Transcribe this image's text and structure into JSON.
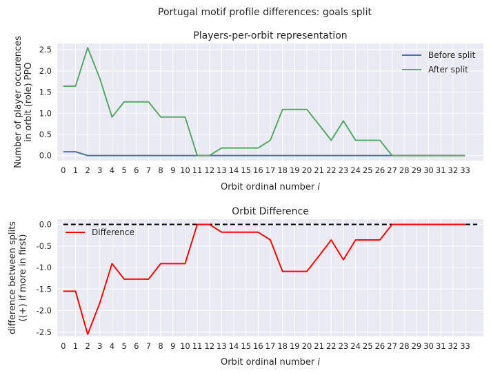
{
  "suptitle": "Portugal motif profile differences: goals split",
  "chart_data": [
    {
      "type": "line",
      "title": "Players-per-orbit representation",
      "xlabel": "Orbit ordinal number",
      "xlabel_var": "i",
      "ylabel": [
        "Number of player occurences",
        "in orbit (role) PPO"
      ],
      "x": [
        0,
        1,
        2,
        3,
        4,
        5,
        6,
        7,
        8,
        9,
        10,
        11,
        12,
        13,
        14,
        15,
        16,
        17,
        18,
        19,
        20,
        21,
        22,
        23,
        24,
        25,
        26,
        27,
        28,
        29,
        30,
        31,
        32,
        33
      ],
      "xlim": [
        -0.5,
        34.5
      ],
      "ylim": [
        -0.12,
        2.65
      ],
      "yticks": [
        "0.0",
        "0.5",
        "1.0",
        "1.5",
        "2.0",
        "2.5"
      ],
      "grid": true,
      "legend_position": "upper right",
      "series": [
        {
          "name": "Before split",
          "color": "#4c72b0",
          "values": [
            0.09,
            0.09,
            0,
            0,
            0,
            0,
            0,
            0,
            0,
            0,
            0,
            0,
            0,
            0,
            0,
            0,
            0,
            0,
            0,
            0,
            0,
            0,
            0,
            0,
            0,
            0,
            0,
            0,
            0,
            0,
            0,
            0,
            0,
            0
          ]
        },
        {
          "name": "After split",
          "color": "#55a868",
          "values": [
            1.64,
            1.64,
            2.55,
            1.82,
            0.91,
            1.27,
            1.27,
            1.27,
            0.91,
            0.91,
            0.91,
            0,
            0,
            0.18,
            0.18,
            0.18,
            0.18,
            0.36,
            1.09,
            1.09,
            1.09,
            0.73,
            0.36,
            0.82,
            0.36,
            0.36,
            0.36,
            0,
            0,
            0,
            0,
            0,
            0,
            0
          ]
        }
      ]
    },
    {
      "type": "line",
      "title": "Orbit Difference",
      "xlabel": "Orbit ordinal number",
      "xlabel_var": "i",
      "ylabel": [
        "difference between splits",
        "((+) if more in first)"
      ],
      "x": [
        0,
        1,
        2,
        3,
        4,
        5,
        6,
        7,
        8,
        9,
        10,
        11,
        12,
        13,
        14,
        15,
        16,
        17,
        18,
        19,
        20,
        21,
        22,
        23,
        24,
        25,
        26,
        27,
        28,
        29,
        30,
        31,
        32,
        33
      ],
      "xlim": [
        -0.5,
        34.5
      ],
      "ylim": [
        -2.6,
        0.12
      ],
      "yticks": [
        "0.0",
        "-0.5",
        "-1.0",
        "-1.5",
        "-2.0",
        "-2.5"
      ],
      "grid": true,
      "legend_position": "upper left",
      "reference_line": {
        "y": 0,
        "x_range": [
          0,
          34
        ],
        "color": "#000000",
        "style": "dashed"
      },
      "series": [
        {
          "name": "Difference",
          "color": "#ff0000",
          "values": [
            -1.55,
            -1.55,
            -2.55,
            -1.82,
            -0.91,
            -1.27,
            -1.27,
            -1.27,
            -0.91,
            -0.91,
            -0.91,
            0,
            0,
            -0.18,
            -0.18,
            -0.18,
            -0.18,
            -0.36,
            -1.09,
            -1.09,
            -1.09,
            -0.73,
            -0.36,
            -0.82,
            -0.36,
            -0.36,
            -0.36,
            0,
            0,
            0,
            0,
            0,
            0,
            0
          ]
        }
      ]
    }
  ]
}
